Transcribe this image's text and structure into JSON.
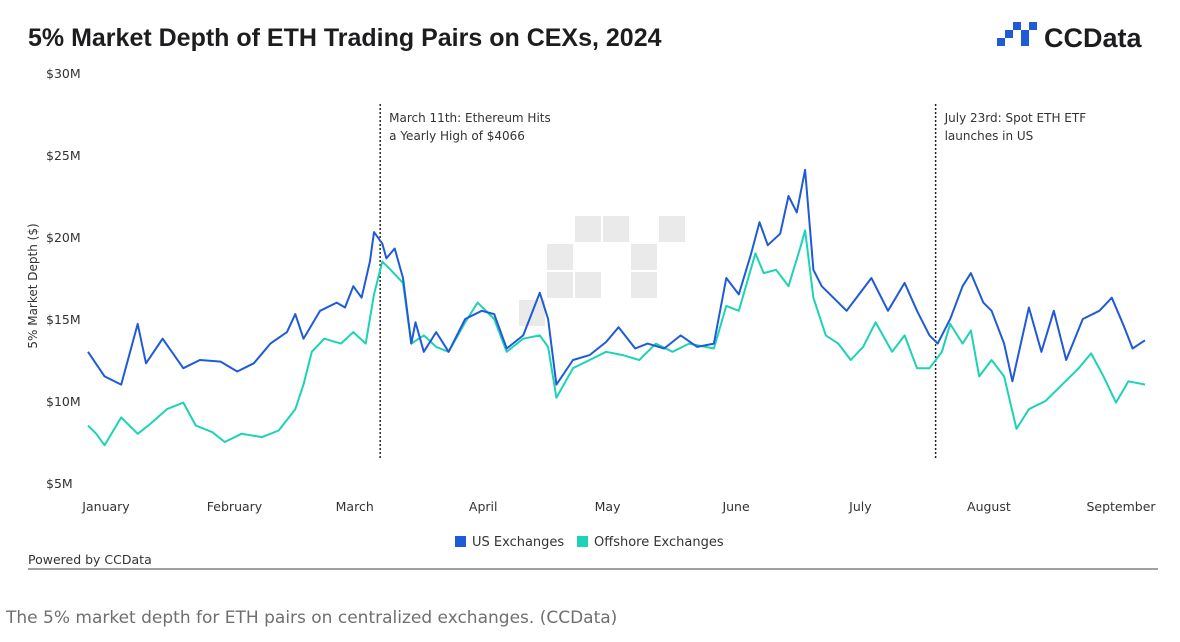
{
  "caption": "The 5% market depth for ETH pairs on centralized exchanges. (CCData)",
  "brand": {
    "name": "CCData",
    "footer": "Powered by CCData",
    "color": "#1f5bd6"
  },
  "chart_data": {
    "type": "line",
    "title": "5% Market Depth of ETH Trading Pairs on CEXs, 2024",
    "ylabel": "5% Market Depth ($)",
    "xlabel": "",
    "ylim": [
      5,
      30
    ],
    "yticks": [
      {
        "value": 30,
        "label": "$30M"
      },
      {
        "value": 25,
        "label": "$25M"
      },
      {
        "value": 20,
        "label": "$20M"
      },
      {
        "value": 15,
        "label": "$15M"
      },
      {
        "value": 10,
        "label": "$10M"
      },
      {
        "value": 5,
        "label": "$5M"
      }
    ],
    "grid": false,
    "legend_position": "bottom-center",
    "xticks": [
      {
        "date": "2024-01-01",
        "label": "January"
      },
      {
        "date": "2024-02-01",
        "label": "February"
      },
      {
        "date": "2024-03-01",
        "label": "March"
      },
      {
        "date": "2024-04-01",
        "label": "April"
      },
      {
        "date": "2024-05-01",
        "label": "May"
      },
      {
        "date": "2024-06-01",
        "label": "June"
      },
      {
        "date": "2024-07-01",
        "label": "July"
      },
      {
        "date": "2024-08-01",
        "label": "August"
      },
      {
        "date": "2024-09-01",
        "label": "September"
      }
    ],
    "annotations": [
      {
        "date": "2024-03-11",
        "lines": [
          "March 11th: Ethereum Hits",
          "a Yearly High of $4066"
        ]
      },
      {
        "date": "2024-07-23",
        "lines": [
          "July 23rd: Spot ETH ETF",
          "launches in US"
        ]
      }
    ],
    "series": [
      {
        "name": "US Exchanges",
        "color": "#1f5bd6",
        "points": [
          [
            "2024-01-01",
            13.0
          ],
          [
            "2024-01-05",
            11.5
          ],
          [
            "2024-01-09",
            11.0
          ],
          [
            "2024-01-13",
            14.7
          ],
          [
            "2024-01-15",
            12.3
          ],
          [
            "2024-01-19",
            13.8
          ],
          [
            "2024-01-24",
            12.0
          ],
          [
            "2024-01-28",
            12.5
          ],
          [
            "2024-02-02",
            12.4
          ],
          [
            "2024-02-06",
            11.8
          ],
          [
            "2024-02-10",
            12.3
          ],
          [
            "2024-02-14",
            13.5
          ],
          [
            "2024-02-18",
            14.2
          ],
          [
            "2024-02-20",
            15.3
          ],
          [
            "2024-02-22",
            13.8
          ],
          [
            "2024-02-26",
            15.5
          ],
          [
            "2024-03-01",
            16.0
          ],
          [
            "2024-03-03",
            15.7
          ],
          [
            "2024-03-05",
            17.0
          ],
          [
            "2024-03-07",
            16.3
          ],
          [
            "2024-03-09",
            18.5
          ],
          [
            "2024-03-10",
            20.3
          ],
          [
            "2024-03-12",
            19.6
          ],
          [
            "2024-03-13",
            18.7
          ],
          [
            "2024-03-15",
            19.3
          ],
          [
            "2024-03-17",
            17.5
          ],
          [
            "2024-03-19",
            13.5
          ],
          [
            "2024-03-20",
            14.8
          ],
          [
            "2024-03-22",
            13.0
          ],
          [
            "2024-03-25",
            14.2
          ],
          [
            "2024-03-28",
            13.0
          ],
          [
            "2024-04-01",
            15.0
          ],
          [
            "2024-04-05",
            15.5
          ],
          [
            "2024-04-08",
            15.3
          ],
          [
            "2024-04-11",
            13.2
          ],
          [
            "2024-04-15",
            14.0
          ],
          [
            "2024-04-19",
            16.6
          ],
          [
            "2024-04-21",
            15.0
          ],
          [
            "2024-04-23",
            11.0
          ],
          [
            "2024-04-27",
            12.5
          ],
          [
            "2024-05-01",
            12.8
          ],
          [
            "2024-05-05",
            13.6
          ],
          [
            "2024-05-08",
            14.5
          ],
          [
            "2024-05-12",
            13.2
          ],
          [
            "2024-05-15",
            13.5
          ],
          [
            "2024-05-19",
            13.2
          ],
          [
            "2024-05-23",
            14.0
          ],
          [
            "2024-05-27",
            13.3
          ],
          [
            "2024-05-31",
            13.5
          ],
          [
            "2024-06-03",
            17.5
          ],
          [
            "2024-06-06",
            16.5
          ],
          [
            "2024-06-09",
            19.0
          ],
          [
            "2024-06-11",
            20.9
          ],
          [
            "2024-06-13",
            19.5
          ],
          [
            "2024-06-16",
            20.2
          ],
          [
            "2024-06-18",
            22.5
          ],
          [
            "2024-06-20",
            21.5
          ],
          [
            "2024-06-22",
            24.1
          ],
          [
            "2024-06-24",
            18.0
          ],
          [
            "2024-06-26",
            17.0
          ],
          [
            "2024-06-30",
            16.0
          ],
          [
            "2024-07-02",
            15.5
          ],
          [
            "2024-07-05",
            16.5
          ],
          [
            "2024-07-08",
            17.5
          ],
          [
            "2024-07-12",
            15.5
          ],
          [
            "2024-07-16",
            17.2
          ],
          [
            "2024-07-19",
            15.5
          ],
          [
            "2024-07-22",
            14.0
          ],
          [
            "2024-07-24",
            13.5
          ],
          [
            "2024-07-27",
            15.0
          ],
          [
            "2024-07-30",
            17.0
          ],
          [
            "2024-08-01",
            17.8
          ],
          [
            "2024-08-04",
            16.0
          ],
          [
            "2024-08-06",
            15.5
          ],
          [
            "2024-08-09",
            13.5
          ],
          [
            "2024-08-11",
            11.2
          ],
          [
            "2024-08-15",
            15.7
          ],
          [
            "2024-08-18",
            13.0
          ],
          [
            "2024-08-21",
            15.5
          ],
          [
            "2024-08-24",
            12.5
          ],
          [
            "2024-08-28",
            15.0
          ],
          [
            "2024-09-01",
            15.5
          ],
          [
            "2024-09-04",
            16.3
          ],
          [
            "2024-09-07",
            14.5
          ],
          [
            "2024-09-09",
            13.2
          ],
          [
            "2024-09-12",
            13.7
          ]
        ]
      },
      {
        "name": "Offshore Exchanges",
        "color": "#1dd3b5",
        "points": [
          [
            "2024-01-01",
            8.5
          ],
          [
            "2024-01-03",
            8.0
          ],
          [
            "2024-01-05",
            7.3
          ],
          [
            "2024-01-09",
            9.0
          ],
          [
            "2024-01-13",
            8.0
          ],
          [
            "2024-01-16",
            8.6
          ],
          [
            "2024-01-20",
            9.5
          ],
          [
            "2024-01-24",
            9.9
          ],
          [
            "2024-01-27",
            8.5
          ],
          [
            "2024-01-31",
            8.1
          ],
          [
            "2024-02-03",
            7.5
          ],
          [
            "2024-02-07",
            8.0
          ],
          [
            "2024-02-12",
            7.8
          ],
          [
            "2024-02-16",
            8.2
          ],
          [
            "2024-02-20",
            9.5
          ],
          [
            "2024-02-22",
            11.0
          ],
          [
            "2024-02-24",
            13.0
          ],
          [
            "2024-02-27",
            13.8
          ],
          [
            "2024-03-02",
            13.5
          ],
          [
            "2024-03-05",
            14.2
          ],
          [
            "2024-03-08",
            13.5
          ],
          [
            "2024-03-10",
            16.5
          ],
          [
            "2024-03-12",
            18.5
          ],
          [
            "2024-03-14",
            18.0
          ],
          [
            "2024-03-17",
            17.2
          ],
          [
            "2024-03-19",
            13.5
          ],
          [
            "2024-03-22",
            14.0
          ],
          [
            "2024-03-25",
            13.3
          ],
          [
            "2024-03-28",
            13.0
          ],
          [
            "2024-04-01",
            14.8
          ],
          [
            "2024-04-04",
            16.0
          ],
          [
            "2024-04-08",
            15.0
          ],
          [
            "2024-04-11",
            13.0
          ],
          [
            "2024-04-15",
            13.8
          ],
          [
            "2024-04-19",
            14.0
          ],
          [
            "2024-04-21",
            13.3
          ],
          [
            "2024-04-23",
            10.2
          ],
          [
            "2024-04-27",
            12.0
          ],
          [
            "2024-05-01",
            12.5
          ],
          [
            "2024-05-05",
            13.0
          ],
          [
            "2024-05-09",
            12.8
          ],
          [
            "2024-05-13",
            12.5
          ],
          [
            "2024-05-17",
            13.5
          ],
          [
            "2024-05-21",
            13.0
          ],
          [
            "2024-05-25",
            13.5
          ],
          [
            "2024-05-31",
            13.2
          ],
          [
            "2024-06-03",
            15.8
          ],
          [
            "2024-06-06",
            15.5
          ],
          [
            "2024-06-10",
            19.0
          ],
          [
            "2024-06-12",
            17.8
          ],
          [
            "2024-06-15",
            18.0
          ],
          [
            "2024-06-18",
            17.0
          ],
          [
            "2024-06-21",
            19.5
          ],
          [
            "2024-06-22",
            20.4
          ],
          [
            "2024-06-24",
            16.3
          ],
          [
            "2024-06-27",
            14.0
          ],
          [
            "2024-06-30",
            13.5
          ],
          [
            "2024-07-03",
            12.5
          ],
          [
            "2024-07-06",
            13.3
          ],
          [
            "2024-07-09",
            14.8
          ],
          [
            "2024-07-13",
            13.0
          ],
          [
            "2024-07-16",
            14.0
          ],
          [
            "2024-07-19",
            12.0
          ],
          [
            "2024-07-22",
            12.0
          ],
          [
            "2024-07-25",
            13.0
          ],
          [
            "2024-07-27",
            14.7
          ],
          [
            "2024-07-30",
            13.5
          ],
          [
            "2024-08-01",
            14.3
          ],
          [
            "2024-08-03",
            11.5
          ],
          [
            "2024-08-06",
            12.5
          ],
          [
            "2024-08-09",
            11.5
          ],
          [
            "2024-08-12",
            8.3
          ],
          [
            "2024-08-15",
            9.5
          ],
          [
            "2024-08-19",
            10.0
          ],
          [
            "2024-08-23",
            11.0
          ],
          [
            "2024-08-27",
            12.0
          ],
          [
            "2024-08-30",
            12.9
          ],
          [
            "2024-09-02",
            11.5
          ],
          [
            "2024-09-05",
            9.9
          ],
          [
            "2024-09-08",
            11.2
          ],
          [
            "2024-09-12",
            11.0
          ]
        ]
      }
    ]
  }
}
